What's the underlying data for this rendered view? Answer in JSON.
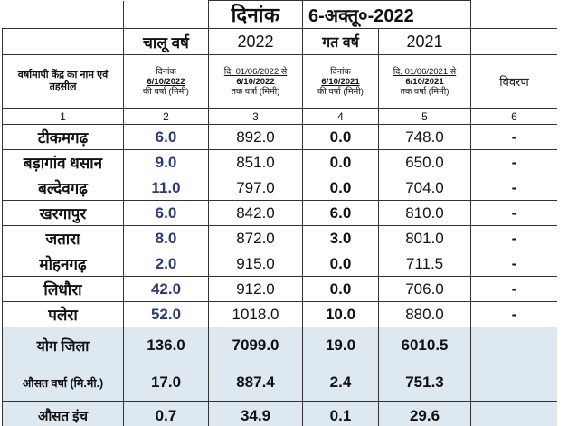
{
  "header": {
    "date_label": "दिनांक",
    "date_value": "6-अक्तू०-2022",
    "current_year_label": "चालू वर्ष",
    "current_year": "2022",
    "previous_year_label": "गत वर्ष",
    "previous_year": "2021",
    "station_col_label": "वर्षामापी केंद्र का नाम एवं तहसील",
    "col2": {
      "line1": "दिनांक",
      "line2": "6/10/2022",
      "line3": "की वर्षा (मिमी)"
    },
    "col3": {
      "line1": "दि. 01/06/2022 से",
      "line2": "6/10/2022",
      "line3": "तक वर्षा (मिमी)"
    },
    "col4": {
      "line1": "दिनांक",
      "line2": "6/10/2021",
      "line3": "की वर्षा (मिमी)"
    },
    "col5": {
      "line1": "दि. 01/06/2021 से",
      "line2": "6/10/2021",
      "line3": "तक वर्षा (मिमी)"
    },
    "remarks_label": "विवरण",
    "col_numbers": [
      "1",
      "2",
      "3",
      "4",
      "5",
      "6"
    ]
  },
  "rows": [
    {
      "name": "टीकमगढ़",
      "c2": "6.0",
      "c3": "892.0",
      "c4": "0.0",
      "c5": "748.0",
      "c6": "-"
    },
    {
      "name": "बड़ागांव धसान",
      "c2": "9.0",
      "c3": "851.0",
      "c4": "0.0",
      "c5": "650.0",
      "c6": "-"
    },
    {
      "name": "बल्देवगढ़",
      "c2": "11.0",
      "c3": "797.0",
      "c4": "0.0",
      "c5": "704.0",
      "c6": "-"
    },
    {
      "name": "खरगापुर",
      "c2": "6.0",
      "c3": "842.0",
      "c4": "6.0",
      "c5": "810.0",
      "c6": "-"
    },
    {
      "name": "जतारा",
      "c2": "8.0",
      "c3": "872.0",
      "c4": "3.0",
      "c5": "801.0",
      "c6": "-"
    },
    {
      "name": "मोहनगढ़",
      "c2": "2.0",
      "c3": "915.0",
      "c4": "0.0",
      "c5": "711.5",
      "c6": "-"
    },
    {
      "name": "लिधौरा",
      "c2": "42.0",
      "c3": "912.0",
      "c4": "0.0",
      "c5": "706.0",
      "c6": "-"
    },
    {
      "name": "पलेरा",
      "c2": "52.0",
      "c3": "1018.0",
      "c4": "10.0",
      "c5": "880.0",
      "c6": "-"
    }
  ],
  "summary": [
    {
      "label": "योग जिला",
      "c2": "136.0",
      "c3": "7099.0",
      "c4": "19.0",
      "c5": "6010.5"
    },
    {
      "label": "औसत वर्षा (मि.मी.)",
      "c2": "17.0",
      "c3": "887.4",
      "c4": "2.4",
      "c5": "751.3"
    },
    {
      "label": "औसत इंच",
      "c2": "0.7",
      "c3": "34.9",
      "c4": "0.1",
      "c5": "29.6"
    }
  ],
  "colors": {
    "current_day_value": "#2b3a78",
    "summary_background": "#dde8f1",
    "border": "#333333"
  }
}
